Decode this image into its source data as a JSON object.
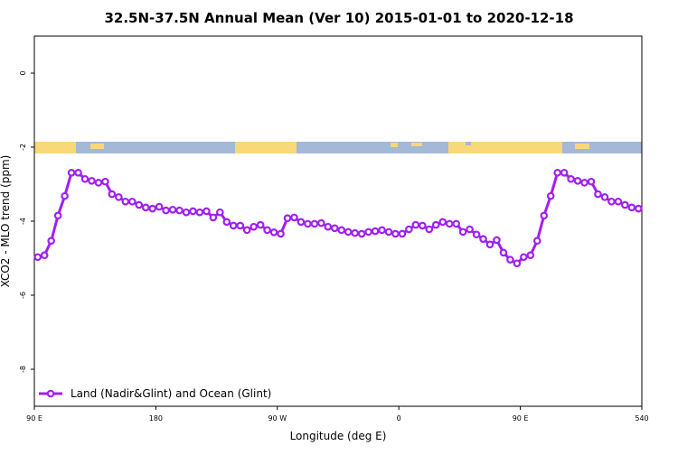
{
  "chart_data": {
    "type": "line",
    "title": "32.5N-37.5N Annual Mean (Ver 10)   2015-01-01 to 2020-12-18",
    "x_label": "Longitude (deg E)",
    "y_label": "XCO2 - MLO trend (ppm)",
    "x": [
      92.5,
      97.5,
      102.5,
      107.5,
      112.5,
      117.5,
      122.5,
      127.5,
      132.5,
      137.5,
      142.5,
      147.5,
      152.5,
      157.5,
      162.5,
      167.5,
      172.5,
      177.5,
      182.5,
      187.5,
      192.5,
      197.5,
      202.5,
      207.5,
      212.5,
      217.5,
      222.5,
      227.5,
      232.5,
      237.5,
      242.5,
      247.5,
      252.5,
      257.5,
      262.5,
      267.5,
      272.5,
      277.5,
      282.5,
      287.5,
      292.5,
      297.5,
      302.5,
      307.5,
      312.5,
      317.5,
      322.5,
      327.5,
      332.5,
      337.5,
      342.5,
      347.5,
      352.5,
      357.5,
      362.5,
      367.5,
      372.5,
      377.5,
      382.5,
      387.5,
      392.5,
      397.5,
      402.5,
      407.5,
      412.5,
      417.5,
      422.5,
      427.5,
      432.5,
      437.5,
      442.5,
      447.5,
      452.5,
      457.5,
      462.5,
      467.5,
      472.5,
      477.5,
      482.5,
      487.5,
      492.5,
      497.5,
      502.5,
      507.5,
      512.5,
      517.5,
      522.5,
      527.5,
      532.5,
      537.5
    ],
    "series": [
      {
        "name": "Land (Nadir&Glint) and Ocean (Glint)",
        "color": "#a020f0",
        "values": [
          -4.97,
          -4.92,
          -4.53,
          -3.85,
          -3.32,
          -2.69,
          -2.69,
          -2.86,
          -2.91,
          -2.96,
          -2.93,
          -3.27,
          -3.35,
          -3.47,
          -3.47,
          -3.56,
          -3.63,
          -3.66,
          -3.61,
          -3.71,
          -3.69,
          -3.71,
          -3.76,
          -3.73,
          -3.76,
          -3.73,
          -3.9,
          -3.76,
          -4.02,
          -4.12,
          -4.12,
          -4.24,
          -4.15,
          -4.1,
          -4.24,
          -4.3,
          -4.34,
          -3.92,
          -3.9,
          -4.02,
          -4.07,
          -4.07,
          -4.05,
          -4.15,
          -4.19,
          -4.24,
          -4.29,
          -4.32,
          -4.34,
          -4.29,
          -4.27,
          -4.24,
          -4.29,
          -4.34,
          -4.34,
          -4.22,
          -4.1,
          -4.12,
          -4.22,
          -4.1,
          -4.02,
          -4.07,
          -4.07,
          -4.29,
          -4.22,
          -4.36,
          -4.48,
          -4.63,
          -4.51,
          -4.85,
          -5.04,
          -5.14,
          -4.97,
          -4.92,
          -4.53,
          -3.85,
          -3.32,
          -2.69,
          -2.69,
          -2.86,
          -2.91,
          -2.96,
          -2.93,
          -3.27,
          -3.35,
          -3.47,
          -3.47,
          -3.56,
          -3.63,
          -3.66
        ]
      }
    ],
    "xlim": [
      90,
      540
    ],
    "xticks": [
      {
        "value": 90,
        "label": "90 E"
      },
      180,
      {
        "value": 270,
        "label": "90 W"
      },
      {
        "value": 360,
        "label": "0"
      },
      {
        "value": 450,
        "label": "90 E"
      },
      540
    ],
    "ylim": [
      -9,
      1
    ],
    "yticks": [
      0,
      -2,
      -4,
      -6,
      -8
    ],
    "legend": "bottom-left"
  }
}
